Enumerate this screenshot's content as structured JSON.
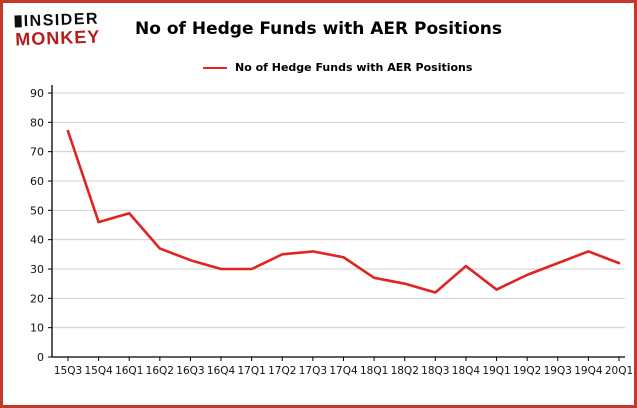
{
  "brand": {
    "line1": "INSIDER",
    "line2": "MONKEY"
  },
  "header": {
    "title": "No of Hedge Funds with AER Positions"
  },
  "legend": {
    "label": "No of Hedge Funds with AER Positions"
  },
  "colors": {
    "line": "#e02421",
    "border": "#c0392b",
    "grid": "#cfcfcf",
    "axis": "#000000",
    "tick_text": "#111111",
    "brand_red": "#b71c1c"
  },
  "chart_data": {
    "type": "line",
    "title": "No of Hedge Funds with AER Positions",
    "categories": [
      "15Q3",
      "15Q4",
      "16Q1",
      "16Q2",
      "16Q3",
      "16Q4",
      "17Q1",
      "17Q2",
      "17Q3",
      "17Q4",
      "18Q1",
      "18Q2",
      "18Q3",
      "18Q4",
      "19Q1",
      "19Q2",
      "19Q3",
      "19Q4",
      "20Q1"
    ],
    "values": [
      77,
      46,
      49,
      37,
      33,
      30,
      30,
      35,
      36,
      34,
      27,
      25,
      22,
      31,
      23,
      28,
      32,
      36,
      32
    ],
    "series_name": "No of Hedge Funds with AER Positions",
    "xlabel": "",
    "ylabel": "",
    "ylim": [
      0,
      90
    ],
    "ytick_step": 10,
    "grid": true,
    "legend_position": "top-left"
  }
}
